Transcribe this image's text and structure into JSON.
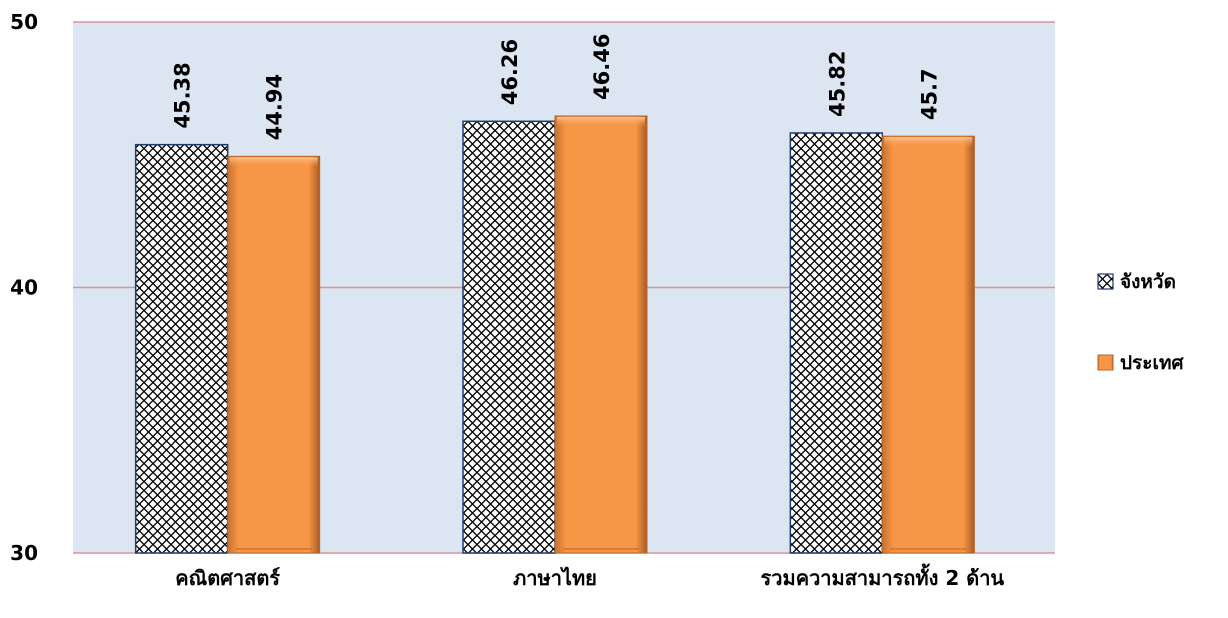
{
  "chart_data": {
    "type": "bar",
    "categories": [
      "คณิตศาสตร์",
      "ภาษาไทย",
      "รวมความสามารถทั้ง 2 ด้าน"
    ],
    "series": [
      {
        "name": "จังหวัด",
        "values": [
          45.38,
          46.26,
          45.82
        ],
        "pattern": "diamond-checker",
        "fill": "#ffffff",
        "stroke": "#1f3a6e"
      },
      {
        "name": "ประเทศ",
        "values": [
          44.94,
          46.46,
          45.7
        ],
        "fill": "#f79646",
        "fill_dark": "#b9652a"
      }
    ],
    "y_ticks": [
      "30",
      "40",
      "50"
    ],
    "ylim": [
      30,
      50
    ],
    "grid": true,
    "gridline_color": "#d99594",
    "plot_background": "#dce6f2",
    "legend_position": "right",
    "title": "",
    "xlabel": "",
    "ylabel": ""
  }
}
